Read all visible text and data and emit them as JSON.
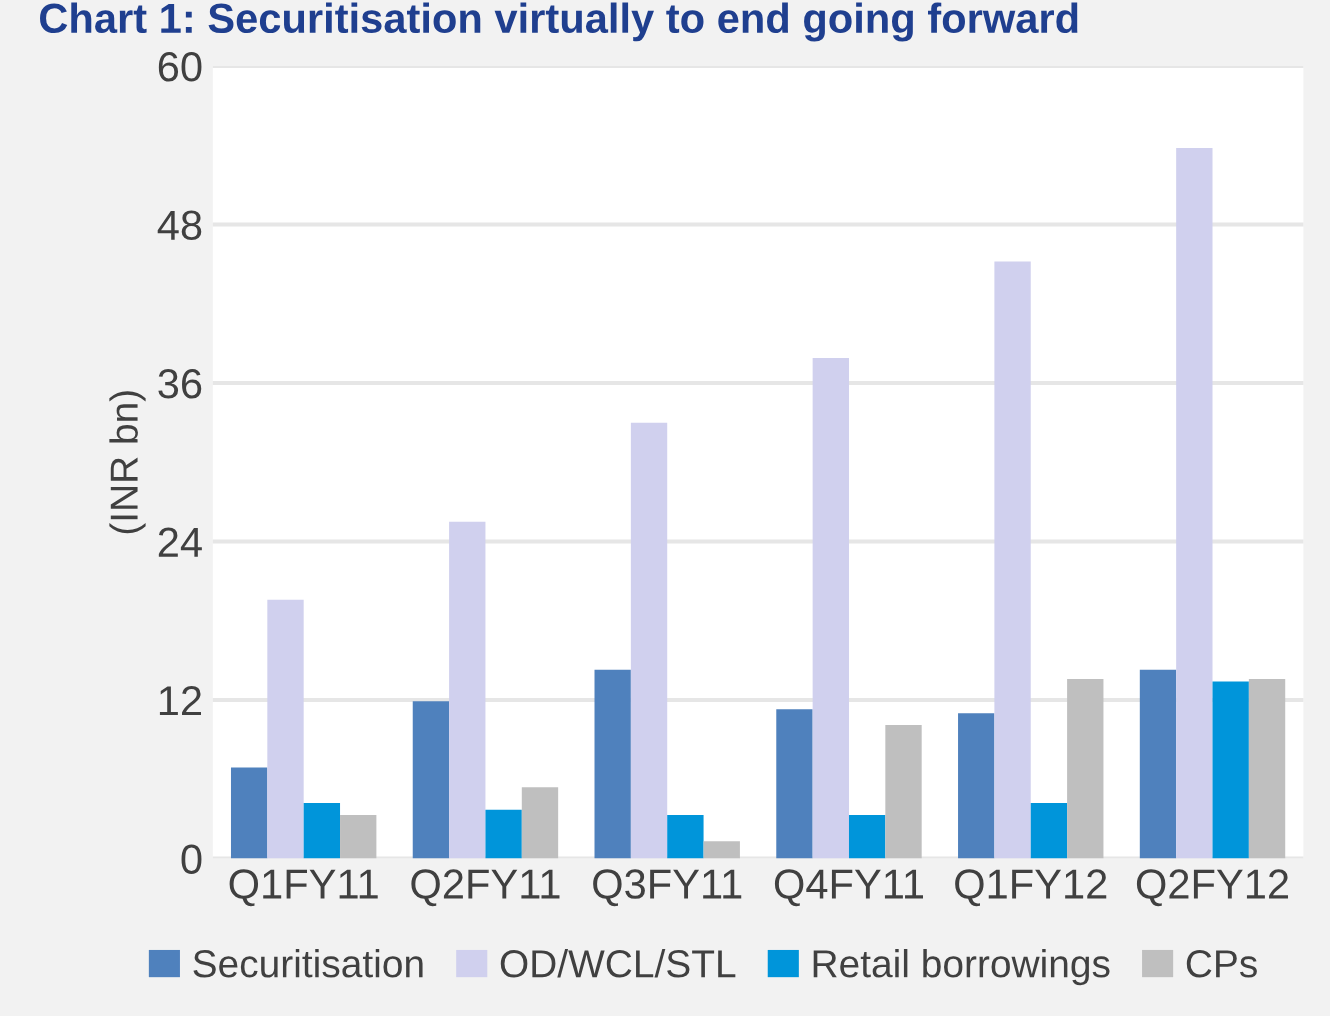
{
  "chart_data": {
    "type": "bar",
    "title": "Chart 1: Securitisation virtually to end going forward",
    "ylabel": "(INR bn)",
    "categories": [
      "Q1FY11",
      "Q2FY11",
      "Q3FY11",
      "Q4FY11",
      "Q1FY12",
      "Q2FY12"
    ],
    "series": [
      {
        "name": "Securitisation",
        "color": "#4f81bd",
        "values": [
          6.9,
          11.9,
          14.3,
          11.3,
          11.0,
          14.3
        ]
      },
      {
        "name": "OD/WCL/STL",
        "color": "#d0d0ee",
        "values": [
          19.6,
          25.5,
          33.0,
          37.9,
          45.2,
          53.8
        ]
      },
      {
        "name": "Retail borrowings",
        "color": "#0095da",
        "values": [
          4.2,
          3.7,
          3.3,
          3.3,
          4.2,
          13.4
        ]
      },
      {
        "name": "CPs",
        "color": "#bfbfbf",
        "values": [
          3.3,
          5.4,
          1.3,
          10.1,
          13.6,
          13.6
        ]
      }
    ],
    "ylim": [
      0,
      60
    ],
    "yticks": [
      0,
      12,
      24,
      36,
      48,
      60
    ],
    "grid": "y",
    "legend": "bottom"
  }
}
